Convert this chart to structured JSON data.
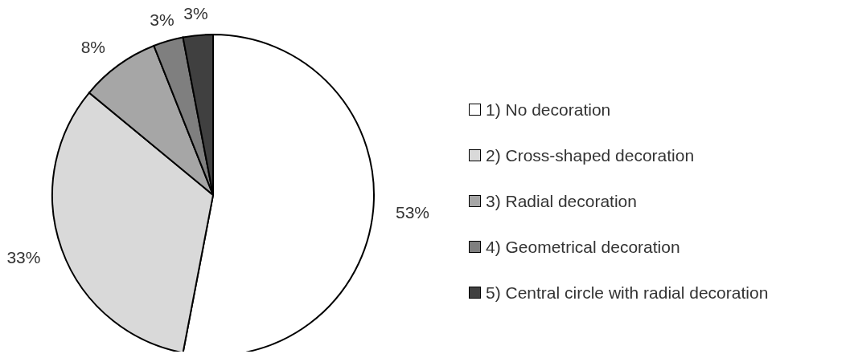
{
  "chart_data": {
    "type": "pie",
    "categories": [
      "1) No decoration",
      "2) Cross-shaped decoration",
      "3) Radial decoration",
      "4) Geometrical decoration",
      "5) Central circle with radial decoration"
    ],
    "values": [
      53,
      33,
      8,
      3,
      3
    ],
    "colors": [
      "#ffffff",
      "#d9d9d9",
      "#a6a6a6",
      "#7f7f7f",
      "#404040"
    ],
    "value_labels": [
      "53%",
      "33%",
      "8%",
      "3%",
      "3%"
    ],
    "legend": "right"
  }
}
